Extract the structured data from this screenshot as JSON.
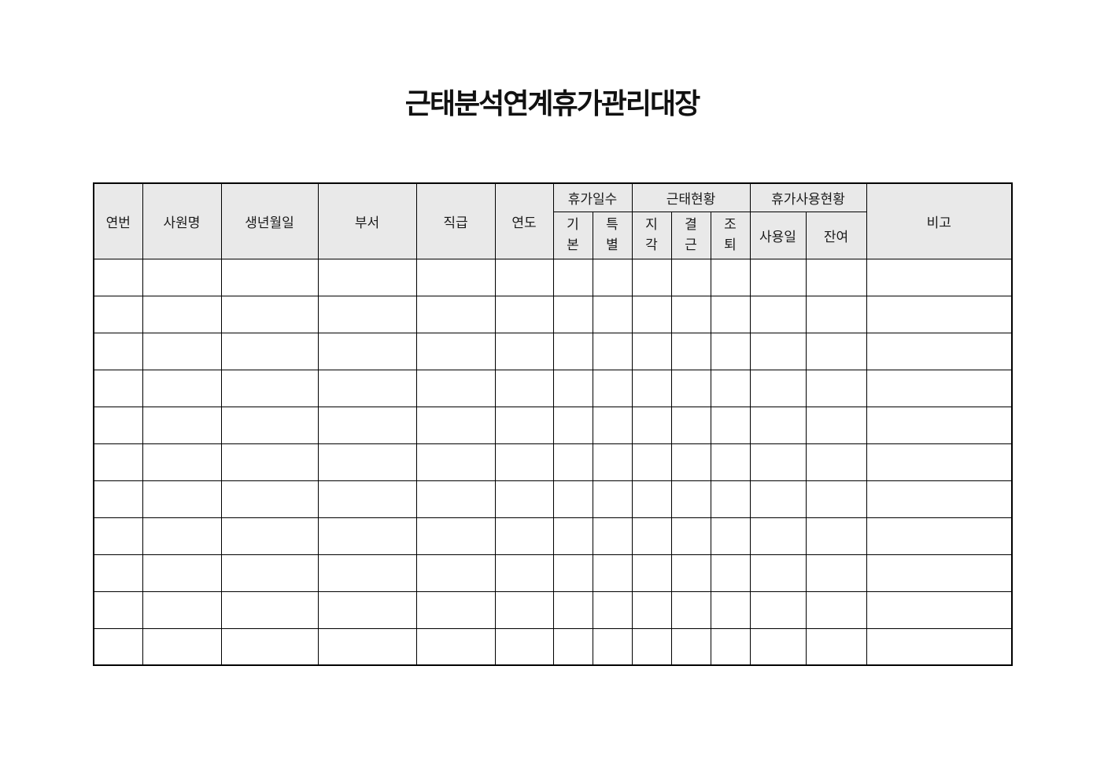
{
  "page": {
    "title": "근태분석연계휴가관리대장"
  },
  "table": {
    "merged_columns": [
      {
        "label": "연번"
      },
      {
        "label": "사원명"
      },
      {
        "label": "생년월일"
      },
      {
        "label": "부서"
      },
      {
        "label": "직급"
      },
      {
        "label": "연도"
      }
    ],
    "groups": [
      {
        "label": "휴가일수",
        "subs": [
          "기\n본",
          "특\n별"
        ]
      },
      {
        "label": "근태현황",
        "subs": [
          "지\n각",
          "결\n근",
          "조\n퇴"
        ]
      },
      {
        "label": "휴가사용현황",
        "subs": [
          "사용일",
          "잔여"
        ]
      }
    ],
    "remarks_label": "비고",
    "body_row_count": 11,
    "column_count": 14
  },
  "colors": {
    "header_bg": "#e9e9e9",
    "border": "#000000",
    "page_bg": "#ffffff"
  }
}
